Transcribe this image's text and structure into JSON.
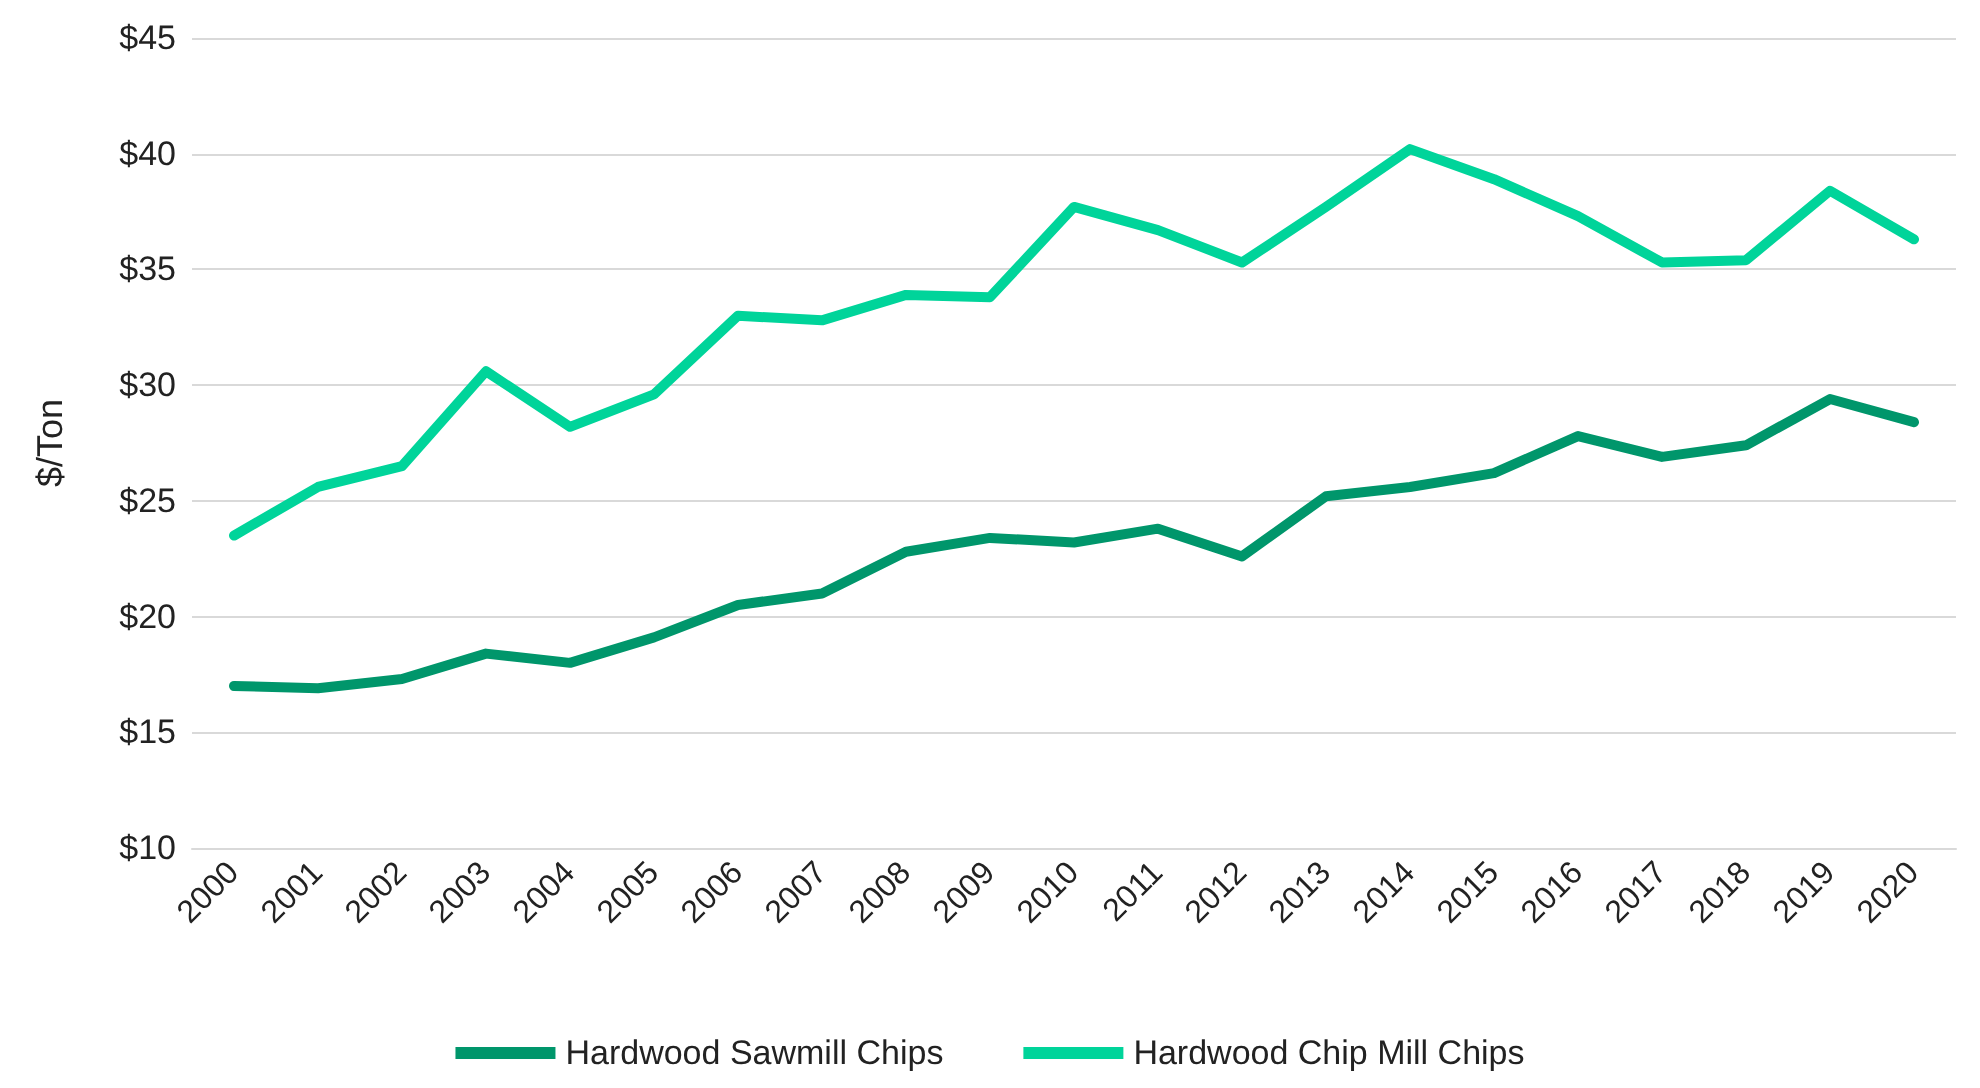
{
  "chart_data": {
    "type": "line",
    "ylabel": "$/Ton",
    "categories": [
      "2000",
      "2001",
      "2002",
      "2003",
      "2004",
      "2005",
      "2006",
      "2007",
      "2008",
      "2009",
      "2010",
      "2011",
      "2012",
      "2013",
      "2014",
      "2015",
      "2016",
      "2017",
      "2018",
      "2019",
      "2020"
    ],
    "series": [
      {
        "name": "Hardwood Sawmill Chips",
        "color": "#00966b",
        "values": [
          17.0,
          16.9,
          17.3,
          18.4,
          18.0,
          19.1,
          20.5,
          21.0,
          22.8,
          23.4,
          23.2,
          23.8,
          22.6,
          25.2,
          25.6,
          26.2,
          27.8,
          26.9,
          27.4,
          29.4,
          28.4
        ]
      },
      {
        "name": "Hardwood Chip Mill Chips",
        "color": "#00d49a",
        "values": [
          23.5,
          25.6,
          26.5,
          30.6,
          28.2,
          29.6,
          33.0,
          32.8,
          33.9,
          33.8,
          37.7,
          36.7,
          35.3,
          37.7,
          40.2,
          38.9,
          37.3,
          35.3,
          35.4,
          38.4,
          36.3
        ]
      }
    ],
    "ylim": [
      10,
      45
    ],
    "yticks": [
      {
        "value": 10,
        "label": "$10"
      },
      {
        "value": 15,
        "label": "$15"
      },
      {
        "value": 20,
        "label": "$20"
      },
      {
        "value": 25,
        "label": "$25"
      },
      {
        "value": 30,
        "label": "$30"
      },
      {
        "value": 35,
        "label": "$35"
      },
      {
        "value": 40,
        "label": "$40"
      },
      {
        "value": 45,
        "label": "$45"
      }
    ],
    "grid": "y",
    "legend": "bottom",
    "marker": "none",
    "line_style": "solid"
  }
}
